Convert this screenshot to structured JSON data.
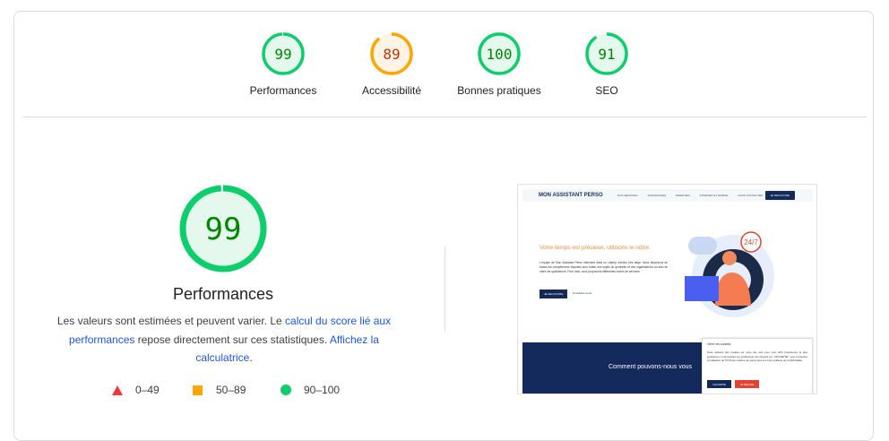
{
  "colors": {
    "pass": "#0cce6b",
    "pass_text": "#008800",
    "pass_bg": "#e5f8ee",
    "average": "#ffa400",
    "average_text": "#c33300",
    "average_bg": "#fff4e6",
    "fail": "#ff3333",
    "link": "#1a56e8"
  },
  "categories": [
    {
      "label": "Performances",
      "score": 99,
      "rating": "pass"
    },
    {
      "label": "Accessibilité",
      "score": 89,
      "rating": "average"
    },
    {
      "label": "Bonnes pratiques",
      "score": 100,
      "rating": "pass"
    },
    {
      "label": "SEO",
      "score": 91,
      "rating": "pass"
    }
  ],
  "main": {
    "score": 99,
    "rating": "pass",
    "title": "Performances",
    "desc_1": "Les valeurs sont estimées et peuvent varier. Le ",
    "link_1": "calcul du score lié aux performances",
    "desc_2": " repose directement sur ces statistiques. ",
    "link_2": "Affichez la calculatrice",
    "desc_3": ".",
    "legend": [
      {
        "icon": "triangle-icon",
        "label": "0–49"
      },
      {
        "icon": "square-icon",
        "label": "50–89"
      },
      {
        "icon": "circle-icon",
        "label": "90–100"
      }
    ]
  },
  "screenshot": {
    "logo": "MON ASSISTANT PERSO",
    "nav": [
      "NOS SERVICES",
      "ASSURANCES",
      "ENERGIES",
      "INTERNET ET MOBILE",
      "NOUS CONTACTER"
    ],
    "nav_button": "JE DECOUVRE",
    "hero_title": "Votre temps est précieux, utilisons le nôtre.",
    "hero_text": "L'équipe de Mon Assistant Perso intervient dans un champ d'action très large. Nous disposons de toutes les compétences requises pour traiter des sujets du quotidien et des organisations au sein de notre vie quotidienne. Pour cela, nous proposons différentes sortes de services.",
    "hero_button": "JE DECOUVRE",
    "hero_link": "Contactez-nous",
    "badge": "24/7",
    "band_title": "Comment pouvons-nous vous",
    "cookie_title": "Gérer les cookies",
    "cookie_text": "Nous utilisons des cookies sur notre site web pour vous offrir l'expérience la plus pertinente en mémorisant vos préférences. En cliquant sur \"J'ACCEPTE\", vous consentez à l'utilisation de TOUS les cookies. En savoir plus sur notre politique de confidentialité.",
    "cookie_accept": "J'ACCEPTE",
    "cookie_refuse": "JE REFUSE"
  }
}
